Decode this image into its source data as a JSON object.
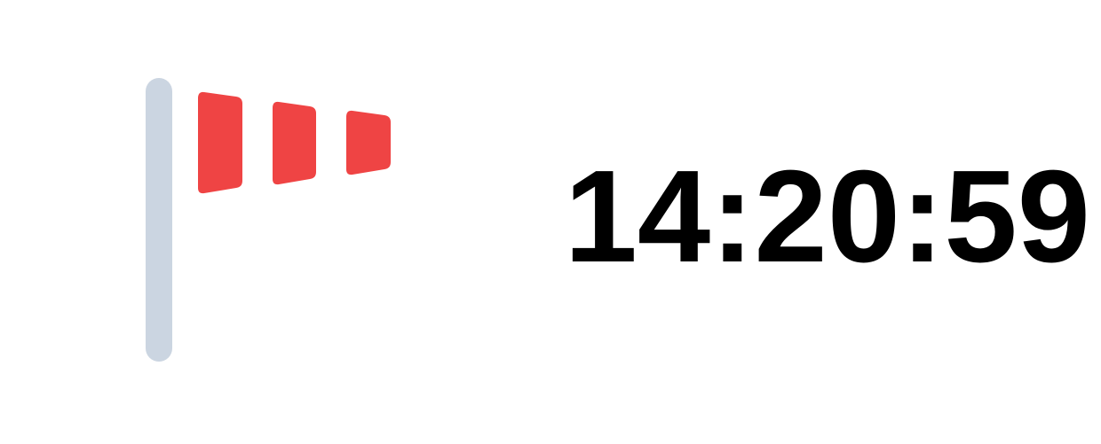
{
  "icon": {
    "name": "windsock-icon",
    "pole_color": "#cbd5e1",
    "sock_color": "#ef4444"
  },
  "clock": {
    "time": "14:20:59",
    "color": "#000000"
  }
}
